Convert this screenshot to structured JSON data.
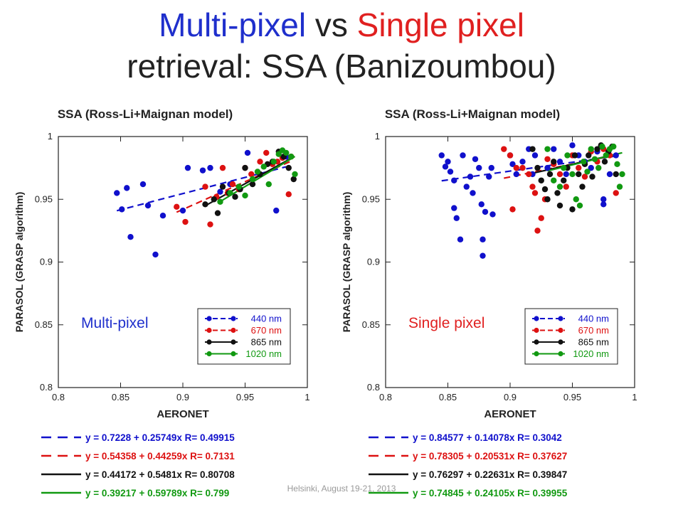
{
  "title": {
    "part1": "Multi-pixel",
    "vs": "vs",
    "part2": "Single pixel",
    "line2": "retrieval: SSA (Banizoumbou)",
    "color1": "#1f2fcc",
    "color2": "#e02020"
  },
  "footer": "Helsinki, August 19-21, 2013",
  "chart_data": [
    {
      "type": "scatter",
      "title": "SSA (Ross-Li+Maignan model)",
      "xlabel": "AERONET",
      "ylabel": "PARASOL (GRASP algorithm)",
      "xlim": [
        0.8,
        1
      ],
      "ylim": [
        0.8,
        1
      ],
      "xticks": [
        "0.8",
        "0.85",
        "0.9",
        "0.95",
        "1"
      ],
      "yticks": [
        "0.8",
        "0.85",
        "0.9",
        "0.95",
        "1"
      ],
      "annotation": "Multi-pixel",
      "annotation_color": "#1f2fcc",
      "legend_position": "bottom-right",
      "series": [
        {
          "name": "440 nm",
          "color": "#1010cc",
          "dash": "9,6",
          "fit": {
            "intercept": 0.7228,
            "slope": 0.25749,
            "text": "y = 0.7228 + 0.25749x   R= 0.49915"
          },
          "points": [
            [
              0.847,
              0.955
            ],
            [
              0.851,
              0.942
            ],
            [
              0.855,
              0.959
            ],
            [
              0.858,
              0.92
            ],
            [
              0.868,
              0.962
            ],
            [
              0.872,
              0.945
            ],
            [
              0.878,
              0.906
            ],
            [
              0.884,
              0.937
            ],
            [
              0.9,
              0.941
            ],
            [
              0.904,
              0.975
            ],
            [
              0.916,
              0.973
            ],
            [
              0.922,
              0.975
            ],
            [
              0.93,
              0.956
            ],
            [
              0.938,
              0.962
            ],
            [
              0.952,
              0.987
            ],
            [
              0.975,
              0.941
            ],
            [
              0.983,
              0.984
            ]
          ]
        },
        {
          "name": "670 nm",
          "color": "#dd1111",
          "dash": "9,6",
          "fit": {
            "intercept": 0.54358,
            "slope": 0.44259,
            "text": "y = 0.54358 + 0.44259x   R= 0.7131"
          },
          "points": [
            [
              0.895,
              0.944
            ],
            [
              0.902,
              0.932
            ],
            [
              0.918,
              0.96
            ],
            [
              0.922,
              0.93
            ],
            [
              0.927,
              0.952
            ],
            [
              0.932,
              0.975
            ],
            [
              0.936,
              0.955
            ],
            [
              0.94,
              0.962
            ],
            [
              0.945,
              0.958
            ],
            [
              0.95,
              0.975
            ],
            [
              0.955,
              0.97
            ],
            [
              0.962,
              0.98
            ],
            [
              0.967,
              0.987
            ],
            [
              0.972,
              0.978
            ],
            [
              0.976,
              0.98
            ],
            [
              0.98,
              0.983
            ],
            [
              0.985,
              0.954
            ],
            [
              0.987,
              0.984
            ]
          ]
        },
        {
          "name": "865 nm",
          "color": "#111111",
          "dash": "",
          "fit": {
            "intercept": 0.44172,
            "slope": 0.5481,
            "text": "y = 0.44172 + 0.5481x   R= 0.80708"
          },
          "points": [
            [
              0.918,
              0.946
            ],
            [
              0.925,
              0.95
            ],
            [
              0.928,
              0.939
            ],
            [
              0.932,
              0.96
            ],
            [
              0.937,
              0.955
            ],
            [
              0.942,
              0.952
            ],
            [
              0.946,
              0.958
            ],
            [
              0.95,
              0.975
            ],
            [
              0.956,
              0.962
            ],
            [
              0.962,
              0.97
            ],
            [
              0.968,
              0.978
            ],
            [
              0.972,
              0.98
            ],
            [
              0.977,
              0.988
            ],
            [
              0.981,
              0.984
            ],
            [
              0.985,
              0.975
            ],
            [
              0.989,
              0.966
            ]
          ]
        },
        {
          "name": "1020 nm",
          "color": "#119911",
          "dash": "",
          "fit": {
            "intercept": 0.39217,
            "slope": 0.59789,
            "text": "y = 0.39217 + 0.59789x   R= 0.799"
          },
          "points": [
            [
              0.93,
              0.948
            ],
            [
              0.938,
              0.955
            ],
            [
              0.945,
              0.96
            ],
            [
              0.95,
              0.953
            ],
            [
              0.956,
              0.966
            ],
            [
              0.96,
              0.972
            ],
            [
              0.965,
              0.976
            ],
            [
              0.969,
              0.962
            ],
            [
              0.973,
              0.98
            ],
            [
              0.977,
              0.986
            ],
            [
              0.98,
              0.989
            ],
            [
              0.983,
              0.987
            ],
            [
              0.987,
              0.984
            ],
            [
              0.99,
              0.97
            ]
          ]
        }
      ]
    },
    {
      "type": "scatter",
      "title": "SSA (Ross-Li+Maignan model)",
      "xlabel": "AERONET",
      "ylabel": "PARASOL (GRASP algorithm)",
      "xlim": [
        0.8,
        1
      ],
      "ylim": [
        0.8,
        1
      ],
      "xticks": [
        "0.8",
        "0.85",
        "0.9",
        "0.95",
        "1"
      ],
      "yticks": [
        "0.8",
        "0.85",
        "0.9",
        "0.95",
        "1"
      ],
      "annotation": "Single pixel",
      "annotation_color": "#e02020",
      "legend_position": "bottom-right",
      "series": [
        {
          "name": "440 nm",
          "color": "#1010cc",
          "dash": "9,6",
          "fit": {
            "intercept": 0.84577,
            "slope": 0.14078,
            "text": "y = 0.84577 + 0.14078x   R= 0.3042"
          },
          "points": [
            [
              0.845,
              0.985
            ],
            [
              0.848,
              0.976
            ],
            [
              0.85,
              0.98
            ],
            [
              0.852,
              0.972
            ],
            [
              0.855,
              0.965
            ],
            [
              0.855,
              0.943
            ],
            [
              0.857,
              0.935
            ],
            [
              0.86,
              0.918
            ],
            [
              0.862,
              0.985
            ],
            [
              0.865,
              0.96
            ],
            [
              0.868,
              0.968
            ],
            [
              0.87,
              0.955
            ],
            [
              0.872,
              0.982
            ],
            [
              0.875,
              0.975
            ],
            [
              0.877,
              0.946
            ],
            [
              0.878,
              0.918
            ],
            [
              0.878,
              0.905
            ],
            [
              0.88,
              0.94
            ],
            [
              0.883,
              0.968
            ],
            [
              0.885,
              0.975
            ],
            [
              0.886,
              0.938
            ],
            [
              0.9,
              0.985
            ],
            [
              0.902,
              0.978
            ],
            [
              0.905,
              0.97
            ],
            [
              0.91,
              0.98
            ],
            [
              0.915,
              0.99
            ],
            [
              0.918,
              0.97
            ],
            [
              0.92,
              0.985
            ],
            [
              0.93,
              0.975
            ],
            [
              0.935,
              0.99
            ],
            [
              0.94,
              0.98
            ],
            [
              0.945,
              0.97
            ],
            [
              0.95,
              0.993
            ],
            [
              0.955,
              0.985
            ],
            [
              0.96,
              0.98
            ],
            [
              0.965,
              0.975
            ],
            [
              0.97,
              0.988
            ],
            [
              0.975,
              0.95
            ],
            [
              0.975,
              0.946
            ],
            [
              0.98,
              0.97
            ],
            [
              0.985,
              0.985
            ]
          ]
        },
        {
          "name": "670 nm",
          "color": "#dd1111",
          "dash": "9,6",
          "fit": {
            "intercept": 0.78305,
            "slope": 0.20531,
            "text": "y = 0.78305 + 0.20531x   R= 0.37627"
          },
          "points": [
            [
              0.895,
              0.99
            ],
            [
              0.9,
              0.985
            ],
            [
              0.902,
              0.942
            ],
            [
              0.905,
              0.975
            ],
            [
              0.91,
              0.975
            ],
            [
              0.915,
              0.97
            ],
            [
              0.918,
              0.96
            ],
            [
              0.92,
              0.955
            ],
            [
              0.922,
              0.925
            ],
            [
              0.925,
              0.935
            ],
            [
              0.928,
              0.95
            ],
            [
              0.93,
              0.982
            ],
            [
              0.935,
              0.978
            ],
            [
              0.94,
              0.97
            ],
            [
              0.945,
              0.96
            ],
            [
              0.95,
              0.985
            ],
            [
              0.955,
              0.975
            ],
            [
              0.96,
              0.968
            ],
            [
              0.965,
              0.988
            ],
            [
              0.97,
              0.98
            ],
            [
              0.975,
              0.99
            ],
            [
              0.98,
              0.985
            ],
            [
              0.985,
              0.955
            ]
          ]
        },
        {
          "name": "865 nm",
          "color": "#111111",
          "dash": "",
          "fit": {
            "intercept": 0.76297,
            "slope": 0.22631,
            "text": "y = 0.76297 + 0.22631x   R= 0.39847"
          },
          "points": [
            [
              0.918,
              0.99
            ],
            [
              0.922,
              0.975
            ],
            [
              0.925,
              0.965
            ],
            [
              0.928,
              0.958
            ],
            [
              0.93,
              0.95
            ],
            [
              0.932,
              0.97
            ],
            [
              0.935,
              0.98
            ],
            [
              0.938,
              0.955
            ],
            [
              0.94,
              0.945
            ],
            [
              0.943,
              0.965
            ],
            [
              0.946,
              0.975
            ],
            [
              0.95,
              0.942
            ],
            [
              0.952,
              0.985
            ],
            [
              0.955,
              0.97
            ],
            [
              0.958,
              0.96
            ],
            [
              0.96,
              0.978
            ],
            [
              0.963,
              0.985
            ],
            [
              0.966,
              0.968
            ],
            [
              0.97,
              0.99
            ],
            [
              0.973,
              0.993
            ],
            [
              0.976,
              0.98
            ],
            [
              0.979,
              0.988
            ],
            [
              0.982,
              0.992
            ],
            [
              0.985,
              0.97
            ]
          ]
        },
        {
          "name": "1020 nm",
          "color": "#119911",
          "dash": "",
          "fit": {
            "intercept": 0.74845,
            "slope": 0.24105,
            "text": "y = 0.74845 + 0.24105x   R= 0.39955"
          },
          "points": [
            [
              0.93,
              0.99
            ],
            [
              0.935,
              0.965
            ],
            [
              0.94,
              0.96
            ],
            [
              0.943,
              0.975
            ],
            [
              0.946,
              0.985
            ],
            [
              0.95,
              0.97
            ],
            [
              0.953,
              0.95
            ],
            [
              0.956,
              0.945
            ],
            [
              0.959,
              0.98
            ],
            [
              0.962,
              0.972
            ],
            [
              0.965,
              0.99
            ],
            [
              0.968,
              0.982
            ],
            [
              0.971,
              0.975
            ],
            [
              0.974,
              0.992
            ],
            [
              0.977,
              0.985
            ],
            [
              0.98,
              0.99
            ],
            [
              0.983,
              0.992
            ],
            [
              0.986,
              0.978
            ],
            [
              0.988,
              0.96
            ],
            [
              0.99,
              0.97
            ]
          ]
        }
      ]
    }
  ]
}
